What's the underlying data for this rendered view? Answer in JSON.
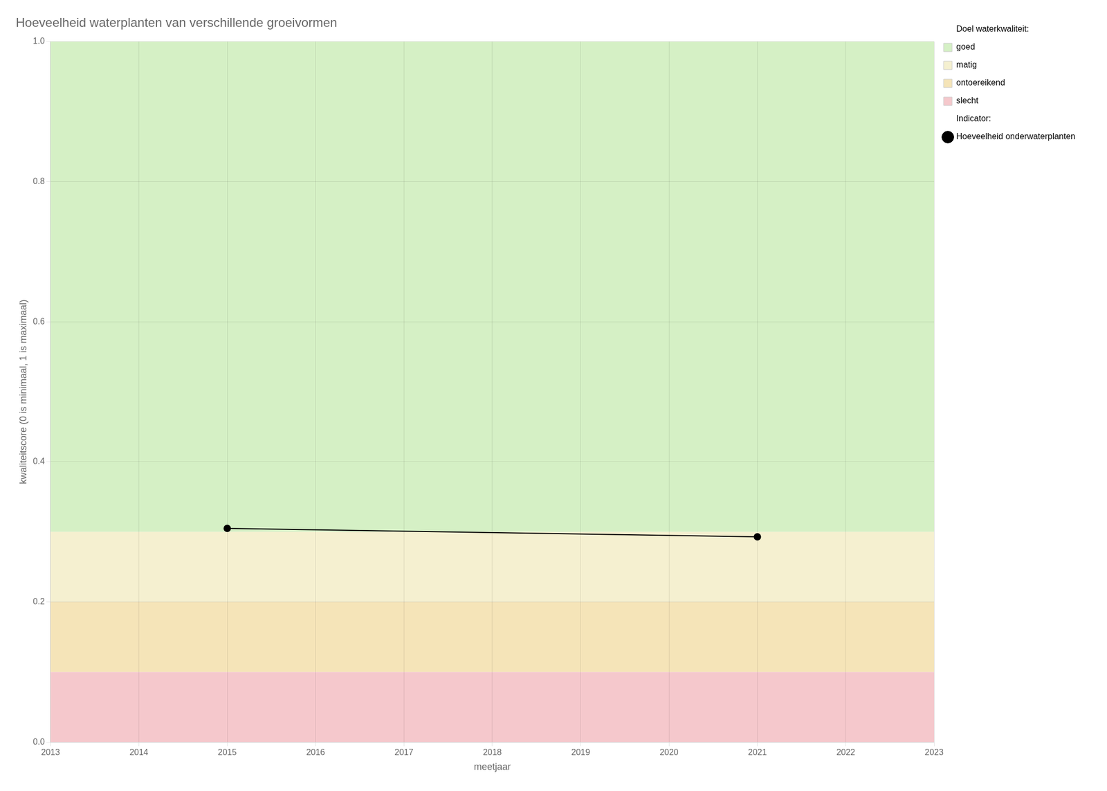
{
  "chart_data": {
    "type": "line",
    "title": "Hoeveelheid waterplanten van verschillende groeivormen",
    "x_label": "meetjaar",
    "y_label": "kwaliteitscore (0 is minimaal, 1 is maximaal)",
    "x": [
      2015,
      2021
    ],
    "series": [
      {
        "name": "Hoeveelheid onderwaterplanten",
        "color": "#000000",
        "marker": "circle",
        "values": [
          0.305,
          0.293
        ]
      }
    ],
    "series_title": "Indicator:",
    "zones_title": "Doel waterkwaliteit:",
    "zones": [
      {
        "name": "goed",
        "ymin": 0.3,
        "ymax": 1.0,
        "color": "#d5f0c5"
      },
      {
        "name": "matig",
        "ymin": 0.2,
        "ymax": 0.3,
        "color": "#f5f0d0"
      },
      {
        "name": "ontoereikend",
        "ymin": 0.1,
        "ymax": 0.2,
        "color": "#f5e4b8"
      },
      {
        "name": "slecht",
        "ymin": 0.0,
        "ymax": 0.1,
        "color": "#f5c8cc"
      }
    ],
    "xlim": [
      2013,
      2023
    ],
    "ylim": [
      0.0,
      1.0
    ],
    "xticks": [
      2013,
      2014,
      2015,
      2016,
      2017,
      2018,
      2019,
      2020,
      2021,
      2022,
      2023
    ],
    "yticks": [
      {
        "value": 0.0,
        "label": "0.0"
      },
      0.2,
      0.4,
      0.6,
      0.8,
      {
        "value": 1.0,
        "label": "1.0"
      }
    ],
    "grid": true,
    "legend": "right"
  }
}
